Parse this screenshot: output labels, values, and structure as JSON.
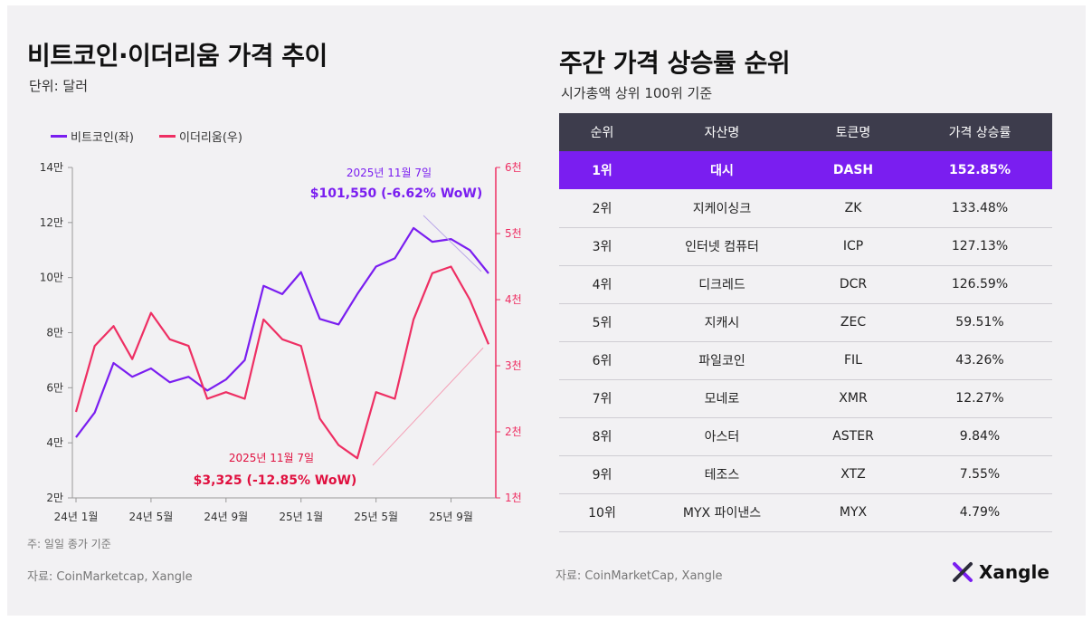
{
  "left": {
    "title": "비트코인·이더리움 가격 추이",
    "subtitle": "단위: 달러",
    "footnote": "주: 일일 종가 기준",
    "source": "자료: CoinMarketcap, Xangle"
  },
  "right": {
    "title": "주간 가격 상승률 순위",
    "subtitle": "시가총액 상위 100위 기준",
    "source": "자료: CoinMarketCap, Xangle",
    "headers": [
      "순위",
      "자산명",
      "토큰명",
      "가격 상승률"
    ],
    "rows": [
      {
        "rank": "1위",
        "name": "대시",
        "token": "DASH",
        "change": "152.85%"
      },
      {
        "rank": "2위",
        "name": "지케이싱크",
        "token": "ZK",
        "change": "133.48%"
      },
      {
        "rank": "3위",
        "name": "인터넷 컴퓨터",
        "token": "ICP",
        "change": "127.13%"
      },
      {
        "rank": "4위",
        "name": "디크레드",
        "token": "DCR",
        "change": "126.59%"
      },
      {
        "rank": "5위",
        "name": "지캐시",
        "token": "ZEC",
        "change": "59.51%"
      },
      {
        "rank": "6위",
        "name": "파일코인",
        "token": "FIL",
        "change": "43.26%"
      },
      {
        "rank": "7위",
        "name": "모네로",
        "token": "XMR",
        "change": "12.27%"
      },
      {
        "rank": "8위",
        "name": "아스터",
        "token": "ASTER",
        "change": "9.84%"
      },
      {
        "rank": "9위",
        "name": "테조스",
        "token": "XTZ",
        "change": "7.55%"
      },
      {
        "rank": "10위",
        "name": "MYX 파이낸스",
        "token": "MYX",
        "change": "4.79%"
      }
    ]
  },
  "brand": "Xangle",
  "colors": {
    "btc": "#7a1ef0",
    "eth": "#ee2f63",
    "header": "#3d3c4c"
  },
  "chart_data": {
    "type": "line",
    "x_tick_labels": [
      "24년 1월",
      "24년 5월",
      "24년 9월",
      "25년 1월",
      "25년 5월",
      "25년 9월"
    ],
    "x": [
      "2024-01",
      "2024-02",
      "2024-03",
      "2024-04",
      "2024-05",
      "2024-06",
      "2024-07",
      "2024-08",
      "2024-09",
      "2024-10",
      "2024-11",
      "2024-12",
      "2025-01",
      "2025-02",
      "2025-03",
      "2025-04",
      "2025-05",
      "2025-06",
      "2025-07",
      "2025-08",
      "2025-09",
      "2025-10",
      "2025-11"
    ],
    "y_left_ticks": [
      "2만",
      "4만",
      "6만",
      "8만",
      "10만",
      "12만",
      "14만"
    ],
    "y_left_lim": [
      20000,
      140000
    ],
    "y_right_ticks": [
      "1천",
      "2천",
      "3천",
      "4천",
      "5천",
      "6천"
    ],
    "y_right_lim": [
      1000,
      6000
    ],
    "grid": false,
    "legend_position": "top-left",
    "series": [
      {
        "name": "비트코인(좌)",
        "axis": "left",
        "values": [
          42000,
          51000,
          69000,
          64000,
          67000,
          62000,
          64000,
          59000,
          63000,
          70000,
          97000,
          94000,
          102000,
          85000,
          83000,
          94000,
          104000,
          107000,
          118000,
          113000,
          114000,
          110000,
          101550
        ]
      },
      {
        "name": "이더리움(우)",
        "axis": "right",
        "values": [
          2300,
          3300,
          3600,
          3100,
          3800,
          3400,
          3300,
          2500,
          2600,
          2500,
          3700,
          3400,
          3300,
          2200,
          1800,
          1600,
          2600,
          2500,
          3700,
          4400,
          4500,
          4000,
          3325
        ]
      }
    ],
    "annotations": [
      {
        "series": "비트코인(좌)",
        "date": "2025년 11월 7일",
        "text": "$101,550 (-6.62% WoW)"
      },
      {
        "series": "이더리움(우)",
        "date": "2025년 11월 7일",
        "text": "$3,325 (-12.85% WoW)"
      }
    ]
  }
}
